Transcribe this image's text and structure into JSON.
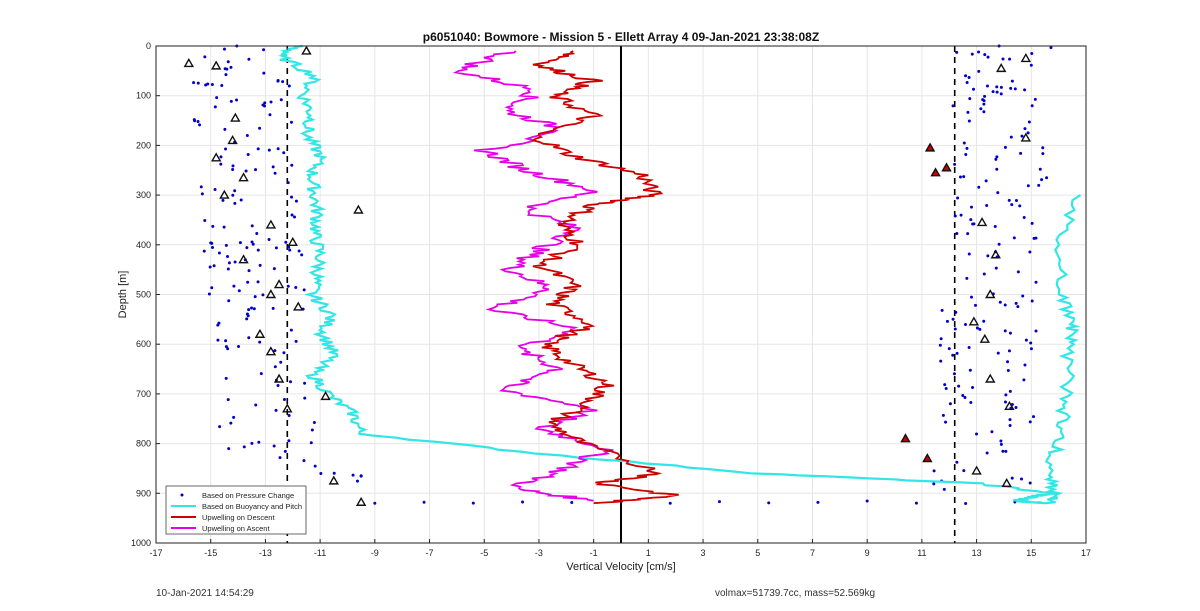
{
  "chart_data": {
    "type": "line",
    "title": "p6051040: Bowmore - Mission 5 - Ellett Array 4 09-Jan-2021 23:38:08Z",
    "xlabel": "Vertical Velocity [cm/s]",
    "ylabel": "Depth [m]",
    "xlim": [
      -17,
      17
    ],
    "ylim": [
      0,
      1000
    ],
    "y_reversed": true,
    "grid": true,
    "xticks": [
      -17,
      -15,
      -13,
      -11,
      -9,
      -7,
      -5,
      -3,
      -1,
      1,
      3,
      5,
      7,
      9,
      11,
      13,
      15,
      17
    ],
    "yticks": [
      0,
      100,
      200,
      300,
      400,
      500,
      600,
      700,
      800,
      900,
      1000
    ],
    "reference_lines": [
      {
        "x": 0,
        "style": "solid",
        "color": "#000000"
      },
      {
        "x": -12.2,
        "style": "dashed",
        "color": "#000000"
      },
      {
        "x": 12.2,
        "style": "dashed",
        "color": "#000000"
      }
    ],
    "legend_position": "bottom-left",
    "series": [
      {
        "name": "Based on Pressure Change",
        "style": "dots",
        "color": "#0000cc",
        "clusters": [
          {
            "side": "left",
            "depths": [
              0,
              900
            ],
            "x_range": [
              -16.8,
              -9.5
            ]
          },
          {
            "side": "right",
            "depths": [
              0,
              900
            ],
            "x_range": [
              10.5,
              16
            ]
          }
        ]
      },
      {
        "name": "Based on Buoyancy and Pitch",
        "style": "line",
        "color": "#33e6e6",
        "x": [
          -11.8,
          -12.5,
          -11.2,
          -11.6,
          -11.3,
          -11.5,
          -11.0,
          -11.3,
          -11.2,
          -11.1,
          -11.2,
          -11.0,
          -11.1,
          -11.3,
          -10.6,
          -10.9,
          -10.5,
          -11.3,
          -10.7,
          -9.8,
          -9.5,
          -3,
          5,
          13,
          15.8,
          15.2,
          14.8,
          14.5,
          15.0,
          15.7,
          15.8,
          15.6,
          16.0,
          16.2,
          16.3,
          16.4,
          16.5,
          16.2,
          15.8,
          16.8
        ],
        "y": [
          0,
          20,
          60,
          100,
          140,
          180,
          220,
          260,
          300,
          340,
          380,
          420,
          460,
          500,
          540,
          580,
          620,
          660,
          700,
          740,
          780,
          820,
          860,
          880,
          900,
          905,
          910,
          915,
          918,
          920,
          900,
          860,
          800,
          740,
          680,
          600,
          560,
          500,
          400,
          300
        ],
        "note_path": "left"
      },
      {
        "name": "Upwelling on Descent",
        "style": "line",
        "color": "#cc0000",
        "x": [
          -1.5,
          -3.0,
          -1.0,
          -2.5,
          -1.0,
          -3.2,
          -1.8,
          0.8,
          1.2,
          -1.0,
          -2.2,
          -1.5,
          -3.0,
          -1.7,
          -2.5,
          -1.0,
          -2.8,
          -1.8,
          -0.5,
          -1.2,
          -2.6,
          -1.4,
          1.5,
          -0.8,
          2.0,
          -1.0
        ],
        "y": [
          10,
          40,
          70,
          100,
          140,
          180,
          220,
          260,
          300,
          320,
          360,
          400,
          440,
          480,
          520,
          560,
          600,
          640,
          680,
          720,
          760,
          800,
          860,
          880,
          905,
          920
        ]
      },
      {
        "name": "Upwelling on Ascent",
        "style": "line",
        "color": "#e600e6",
        "x": [
          -4.0,
          -6.0,
          -3.0,
          -4.2,
          -2.0,
          -5.0,
          -3.5,
          -1.0,
          -3.5,
          -1.5,
          -3.0,
          -4.0,
          -2.5,
          -4.8,
          -1.5,
          -3.8,
          -2.2,
          -4.5,
          -1.0,
          -3.0,
          -0.5,
          -2.0,
          -4.0,
          -1.0
        ],
        "y": [
          10,
          50,
          90,
          130,
          170,
          210,
          250,
          290,
          330,
          370,
          410,
          450,
          490,
          530,
          570,
          610,
          650,
          690,
          730,
          770,
          810,
          850,
          890,
          915
        ]
      }
    ],
    "markers": [
      {
        "x": -14.8,
        "y": 40
      },
      {
        "x": -15.8,
        "y": 35
      },
      {
        "x": -11.5,
        "y": 10
      },
      {
        "x": -14.1,
        "y": 145
      },
      {
        "x": -14.2,
        "y": 190
      },
      {
        "x": -14.8,
        "y": 225
      },
      {
        "x": -13.8,
        "y": 265
      },
      {
        "x": -14.5,
        "y": 300
      },
      {
        "x": -12.8,
        "y": 360
      },
      {
        "x": -9.6,
        "y": 330
      },
      {
        "x": -12.0,
        "y": 395
      },
      {
        "x": -13.8,
        "y": 430
      },
      {
        "x": -12.5,
        "y": 480
      },
      {
        "x": -12.8,
        "y": 500
      },
      {
        "x": -11.8,
        "y": 525
      },
      {
        "x": -13.2,
        "y": 580
      },
      {
        "x": -12.8,
        "y": 615
      },
      {
        "x": -12.5,
        "y": 670
      },
      {
        "x": -10.8,
        "y": 705
      },
      {
        "x": -12.2,
        "y": 730
      },
      {
        "x": -10.5,
        "y": 875
      },
      {
        "x": -9.5,
        "y": 918
      },
      {
        "x": 14.8,
        "y": 25
      },
      {
        "x": 13.9,
        "y": 45
      },
      {
        "x": 14.8,
        "y": 185
      },
      {
        "x": 13.2,
        "y": 355
      },
      {
        "x": 13.7,
        "y": 420
      },
      {
        "x": 13.5,
        "y": 500
      },
      {
        "x": 12.9,
        "y": 555
      },
      {
        "x": 13.3,
        "y": 590
      },
      {
        "x": 13.5,
        "y": 670
      },
      {
        "x": 14.2,
        "y": 725
      },
      {
        "x": 13.0,
        "y": 855
      },
      {
        "x": 14.1,
        "y": 880
      },
      {
        "x": 10.4,
        "y": 790
      },
      {
        "x": 11.2,
        "y": 830
      },
      {
        "x": 11.3,
        "y": 205
      },
      {
        "x": 11.5,
        "y": 255
      },
      {
        "x": 11.9,
        "y": 245
      }
    ]
  },
  "footer": {
    "timestamp": "10-Jan-2021 14:54:29",
    "stats": "volmax=51739.7cc, mass=52.569kg"
  }
}
